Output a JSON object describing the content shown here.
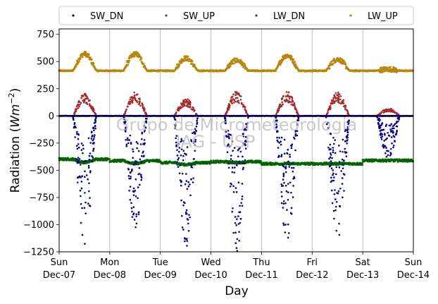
{
  "chart_data": {
    "type": "scatter",
    "xlabel": "Day",
    "ylabel_main": "Radiation (",
    "ylabel_unit": "Wm",
    "ylabel_exp": "−2",
    "ylabel_end": ")",
    "ylim": [
      -1250,
      800
    ],
    "yticks": [
      750,
      500,
      250,
      0,
      -250,
      -500,
      -750,
      -1000,
      -1250
    ],
    "ytick_labels": [
      "750",
      "500",
      "250",
      "0",
      "−250",
      "−500",
      "−750",
      "−1000",
      "−1250"
    ],
    "xlim": [
      "2014-12-07",
      "2014-12-14"
    ],
    "xticks": [
      {
        "day": "Sun",
        "date": "Dec-07"
      },
      {
        "day": "Mon",
        "date": "Dec-08"
      },
      {
        "day": "Tue",
        "date": "Dec-09"
      },
      {
        "day": "Wed",
        "date": "Dec-10"
      },
      {
        "day": "Thu",
        "date": "Dec-11"
      },
      {
        "day": "Fri",
        "date": "Dec-12"
      },
      {
        "day": "Sat",
        "date": "Dec-13"
      },
      {
        "day": "Sun",
        "date": "Dec-14"
      }
    ],
    "grid": "vertical",
    "legend_position": "top",
    "watermark": [
      "Grupo de Micrometeorologia",
      "IAG - USP"
    ],
    "series": [
      {
        "name": "SW_DN",
        "color": "#00008b"
      },
      {
        "name": "SW_UP",
        "color": "#a52a2a"
      },
      {
        "name": "LW_DN",
        "color": "#006400"
      },
      {
        "name": "LW_UP",
        "color": "#b8860b"
      }
    ],
    "daily_peaks": [
      {
        "date": "2014-12-07",
        "SW_DN": -1180,
        "SW_UP": 205,
        "LW_DN": -430,
        "LW_UP": 590
      },
      {
        "date": "2014-12-08",
        "SW_DN": -1070,
        "SW_UP": 220,
        "LW_DN": -440,
        "LW_UP": 590
      },
      {
        "date": "2014-12-09",
        "SW_DN": -1210,
        "SW_UP": 160,
        "LW_DN": -450,
        "LW_UP": 550
      },
      {
        "date": "2014-12-10",
        "SW_DN": -1250,
        "SW_UP": 230,
        "LW_DN": -430,
        "LW_UP": 530
      },
      {
        "date": "2014-12-11",
        "SW_DN": -1150,
        "SW_UP": 225,
        "LW_DN": -440,
        "LW_UP": 575
      },
      {
        "date": "2014-12-12",
        "SW_DN": -1130,
        "SW_UP": 220,
        "LW_DN": -440,
        "LW_UP": 540
      },
      {
        "date": "2014-12-13",
        "SW_DN": -400,
        "SW_UP": 70,
        "LW_DN": -410,
        "LW_UP": 450
      }
    ],
    "night_levels": {
      "SW_DN": 0,
      "SW_UP": 0,
      "LW_DN": -350,
      "LW_UP": 415
    }
  }
}
